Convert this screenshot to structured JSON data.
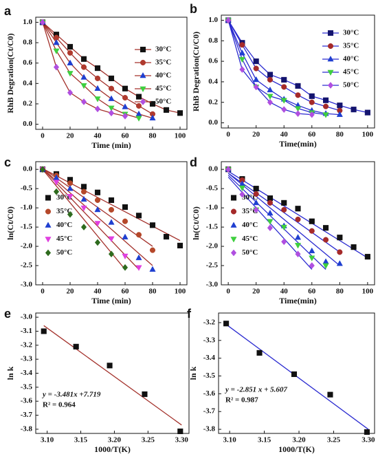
{
  "chart_data": [
    {
      "panel": "a",
      "type": "line",
      "xlabel": "Time (min)",
      "ylabel": "RhB Degration(Ct/C0)",
      "xlim": [
        -5,
        105
      ],
      "ylim": [
        -0.05,
        1.05
      ],
      "xticks": [
        0,
        20,
        40,
        60,
        80,
        100
      ],
      "yticks": [
        {
          "value": 0,
          "label": "0.0"
        },
        0.2,
        0.4,
        0.6,
        0.8,
        {
          "value": 1,
          "label": "1.0"
        }
      ],
      "legend": "upper right",
      "line_color": "#a3302a",
      "series": [
        {
          "name": "30°C",
          "color": "#111111",
          "marker": "square",
          "x": [
            0,
            10,
            20,
            30,
            40,
            50,
            60,
            70,
            80,
            90,
            100
          ],
          "values": [
            1.0,
            0.88,
            0.76,
            0.64,
            0.55,
            0.45,
            0.35,
            0.27,
            0.2,
            0.14,
            0.11
          ]
        },
        {
          "name": "35°C",
          "color": "#b03a2e",
          "marker": "circle",
          "x": [
            0,
            10,
            20,
            30,
            40,
            50,
            60,
            70,
            80
          ],
          "values": [
            1.0,
            0.85,
            0.7,
            0.56,
            0.45,
            0.35,
            0.26,
            0.18,
            0.1
          ]
        },
        {
          "name": "40°C",
          "color": "#1f3fd0",
          "marker": "triangle-up",
          "x": [
            0,
            10,
            20,
            30,
            40,
            50,
            60,
            70,
            80
          ],
          "values": [
            1.0,
            0.8,
            0.6,
            0.46,
            0.35,
            0.25,
            0.17,
            0.1,
            0.06
          ]
        },
        {
          "name": "45°C",
          "color": "#3fcf3f",
          "marker": "triangle-down",
          "x": [
            0,
            10,
            20,
            30,
            40,
            50,
            60,
            70
          ],
          "values": [
            1.0,
            0.72,
            0.5,
            0.38,
            0.25,
            0.16,
            0.1,
            0.06
          ]
        },
        {
          "name": "50°C",
          "color": "#b04fe0",
          "marker": "diamond",
          "x": [
            0,
            10,
            20,
            30,
            40,
            50,
            60
          ],
          "values": [
            1.0,
            0.56,
            0.31,
            0.22,
            0.15,
            0.11,
            0.08
          ]
        }
      ]
    },
    {
      "panel": "b",
      "type": "line",
      "xlabel": "Time(min)",
      "ylabel": "RhB Degration(Ct/C0)",
      "xlim": [
        -5,
        105
      ],
      "ylim": [
        -0.05,
        1.05
      ],
      "xticks": [
        0,
        20,
        40,
        60,
        80,
        100
      ],
      "yticks": [
        {
          "value": 0,
          "label": "0.0"
        },
        0.2,
        0.4,
        0.6,
        0.8,
        {
          "value": 1,
          "label": "1.0"
        }
      ],
      "legend": "upper right",
      "line_color": "#2a2ad0",
      "series": [
        {
          "name": "30°C",
          "color": "#14146e",
          "marker": "square",
          "x": [
            0,
            10,
            20,
            30,
            40,
            50,
            60,
            70,
            80,
            90,
            100
          ],
          "values": [
            1.0,
            0.78,
            0.6,
            0.47,
            0.42,
            0.36,
            0.26,
            0.22,
            0.17,
            0.13,
            0.1
          ]
        },
        {
          "name": "35°C",
          "color": "#a52a2a",
          "marker": "circle",
          "x": [
            0,
            10,
            20,
            30,
            40,
            50,
            60,
            70,
            80
          ],
          "values": [
            1.0,
            0.76,
            0.53,
            0.42,
            0.35,
            0.27,
            0.2,
            0.16,
            0.12
          ]
        },
        {
          "name": "40°C",
          "color": "#1f3fd0",
          "marker": "triangle-up",
          "x": [
            0,
            10,
            20,
            30,
            40,
            50,
            60,
            70,
            80
          ],
          "values": [
            1.0,
            0.68,
            0.42,
            0.32,
            0.23,
            0.17,
            0.12,
            0.09,
            0.08
          ]
        },
        {
          "name": "45°C",
          "color": "#3fcf3f",
          "marker": "triangle-down",
          "x": [
            0,
            10,
            20,
            30,
            40,
            50,
            60,
            70
          ],
          "values": [
            1.0,
            0.62,
            0.35,
            0.26,
            0.22,
            0.14,
            0.1,
            0.08
          ]
        },
        {
          "name": "50°C",
          "color": "#b04fe0",
          "marker": "diamond",
          "x": [
            0,
            10,
            20,
            30,
            40,
            50,
            60
          ],
          "values": [
            1.0,
            0.52,
            0.35,
            0.2,
            0.13,
            0.09,
            0.08
          ]
        }
      ]
    },
    {
      "panel": "c",
      "type": "scatter",
      "xlabel": "Time (min)",
      "ylabel": "ln(Ct/C0)",
      "xlim": [
        -5,
        105
      ],
      "ylim": [
        -3.0,
        0.2
      ],
      "xticks": [
        0,
        20,
        40,
        60,
        80,
        100
      ],
      "yticks": [
        {
          "value": 0,
          "label": "0.0"
        },
        -0.5,
        {
          "value": -1,
          "label": "-1.0"
        },
        -1.5,
        {
          "value": -2,
          "label": "-2.0"
        },
        -2.5,
        {
          "value": -3,
          "label": "-3.0"
        }
      ],
      "legend": "center left",
      "line_color": "#a3302a",
      "series": [
        {
          "name": "30°C",
          "color": "#111111",
          "marker": "square",
          "x": [
            0,
            10,
            20,
            30,
            40,
            50,
            60,
            70,
            80,
            90,
            100
          ],
          "values": [
            0,
            -0.12,
            -0.27,
            -0.45,
            -0.6,
            -0.8,
            -0.98,
            -1.2,
            -1.45,
            -1.75,
            -1.98
          ],
          "fit": {
            "x": [
              0,
              100
            ],
            "y": [
              0.02,
              -1.85
            ]
          }
        },
        {
          "name": "35°C",
          "color": "#b5482a",
          "marker": "circle",
          "x": [
            0,
            10,
            20,
            30,
            40,
            50,
            60,
            70,
            80
          ],
          "values": [
            0,
            -0.16,
            -0.36,
            -0.58,
            -0.8,
            -1.05,
            -1.35,
            -1.7,
            -2.1
          ],
          "fit": {
            "x": [
              0,
              80
            ],
            "y": [
              0.03,
              -2.0
            ]
          }
        },
        {
          "name": "40°C",
          "color": "#1f3fd0",
          "marker": "triangle-up",
          "x": [
            0,
            10,
            20,
            30,
            40,
            50,
            60,
            70,
            80
          ],
          "values": [
            0,
            -0.22,
            -0.5,
            -0.78,
            -1.05,
            -1.38,
            -1.76,
            -2.3,
            -2.6
          ],
          "fit": {
            "x": [
              0,
              80
            ],
            "y": [
              0.02,
              -2.5
            ]
          }
        },
        {
          "name": "45°C",
          "color": "#e040e0",
          "marker": "triangle-down",
          "x": [
            0,
            10,
            20,
            30,
            40,
            50,
            60,
            70
          ],
          "values": [
            0,
            -0.33,
            -0.7,
            -1.0,
            -1.4,
            -1.8,
            -2.25,
            -2.55
          ],
          "fit": {
            "x": [
              0,
              70
            ],
            "y": [
              0.02,
              -2.6
            ]
          }
        },
        {
          "name": "50°C",
          "color": "#2e6b1e",
          "marker": "diamond",
          "x": [
            0,
            10,
            20,
            30,
            40,
            50,
            60
          ],
          "values": [
            0,
            -0.58,
            -1.17,
            -1.5,
            -1.9,
            -2.2,
            -2.55
          ],
          "fit": {
            "x": [
              0,
              60
            ],
            "y": [
              0.0,
              -2.6
            ]
          }
        }
      ]
    },
    {
      "panel": "d",
      "type": "scatter",
      "xlabel": "Time(min)",
      "ylabel": "ln(Ct/C0)",
      "xlim": [
        -5,
        105
      ],
      "ylim": [
        -3.0,
        0.2
      ],
      "xticks": [
        0,
        20,
        40,
        60,
        80,
        100
      ],
      "yticks": [
        {
          "value": 0,
          "label": "0.0"
        },
        -0.5,
        {
          "value": -1,
          "label": "-1.0"
        },
        -1.5,
        {
          "value": -2,
          "label": "-2.0"
        },
        -2.5,
        {
          "value": -3,
          "label": "-3.0"
        }
      ],
      "legend": "center left",
      "line_color": "#2a2ad0",
      "series": [
        {
          "name": "30°C",
          "color": "#111111",
          "marker": "square",
          "x": [
            0,
            10,
            20,
            30,
            40,
            50,
            60,
            70,
            80,
            90,
            100
          ],
          "values": [
            0,
            -0.25,
            -0.5,
            -0.75,
            -0.87,
            -1.02,
            -1.35,
            -1.52,
            -1.77,
            -2.02,
            -2.27
          ],
          "fit": {
            "x": [
              0,
              100
            ],
            "y": [
              -0.05,
              -2.3
            ]
          }
        },
        {
          "name": "35°C",
          "color": "#a52a2a",
          "marker": "circle",
          "x": [
            0,
            10,
            20,
            30,
            40,
            50,
            60,
            70,
            80
          ],
          "values": [
            0,
            -0.28,
            -0.64,
            -0.87,
            -1.05,
            -1.3,
            -1.6,
            -1.83,
            -2.15
          ],
          "fit": {
            "x": [
              0,
              80
            ],
            "y": [
              -0.1,
              -2.15
            ]
          }
        },
        {
          "name": "40°C",
          "color": "#1f3fd0",
          "marker": "triangle-up",
          "x": [
            0,
            10,
            20,
            30,
            40,
            50,
            60,
            70,
            80
          ],
          "values": [
            0,
            -0.38,
            -0.87,
            -1.14,
            -1.47,
            -1.77,
            -2.12,
            -2.4,
            -2.45
          ],
          "fit": {
            "x": [
              0,
              80
            ],
            "y": [
              -0.1,
              -2.5
            ]
          }
        },
        {
          "name": "45°C",
          "color": "#3fcf3f",
          "marker": "triangle-down",
          "x": [
            0,
            10,
            20,
            30,
            40,
            50,
            60,
            70
          ],
          "values": [
            0,
            -0.48,
            -1.05,
            -1.35,
            -1.5,
            -1.97,
            -2.3,
            -2.5
          ],
          "fit": {
            "x": [
              0,
              70
            ],
            "y": [
              -0.15,
              -2.6
            ]
          }
        },
        {
          "name": "50°C",
          "color": "#b04fe0",
          "marker": "diamond",
          "x": [
            0,
            10,
            20,
            30,
            40,
            50,
            60
          ],
          "values": [
            0,
            -0.65,
            -1.05,
            -1.52,
            -1.88,
            -2.2,
            -2.5
          ],
          "fit": {
            "x": [
              0,
              60
            ],
            "y": [
              -0.2,
              -2.6
            ]
          }
        }
      ]
    },
    {
      "panel": "e",
      "type": "scatter",
      "xlabel": "1000/T(K)",
      "ylabel": "ln k",
      "xlim": [
        3.083,
        3.311
      ],
      "ylim": [
        -3.83,
        -2.97
      ],
      "xticks": [
        {
          "value": 3.1,
          "label": "3.10"
        },
        3.15,
        {
          "value": 3.2,
          "label": "3.20"
        },
        3.25,
        {
          "value": 3.3,
          "label": "3.30"
        }
      ],
      "yticks": [
        {
          "value": -3,
          "label": "-3.0"
        },
        -3.1,
        -3.2,
        -3.3,
        -3.4,
        -3.5,
        -3.6,
        -3.7,
        -3.8
      ],
      "line_color": "#a3302a",
      "annotations": [
        "y = -3.481x +7.719",
        "R² = 0.964"
      ],
      "series": [
        {
          "color": "#111111",
          "marker": "square",
          "x": [
            3.095,
            3.143,
            3.193,
            3.245,
            3.298
          ],
          "values": [
            -3.1,
            -3.21,
            -3.345,
            -3.55,
            -3.815
          ],
          "fit": {
            "x": [
              3.095,
              3.3
            ],
            "y": [
              -3.06,
              -3.77
            ]
          }
        }
      ]
    },
    {
      "panel": "f",
      "type": "scatter",
      "xlabel": "1000/T(K)",
      "ylabel": "ln k",
      "xlim": [
        3.084,
        3.309
      ],
      "ylim": [
        -3.823,
        -3.146
      ],
      "xticks": [
        {
          "value": 3.1,
          "label": "3.10"
        },
        3.15,
        {
          "value": 3.2,
          "label": "3.20"
        },
        3.25,
        {
          "value": 3.3,
          "label": "3.30"
        }
      ],
      "yticks": [
        -3.2,
        -3.3,
        -3.4,
        -3.5,
        -3.6,
        -3.7,
        -3.8
      ],
      "line_color": "#2a2ad0",
      "annotations": [
        "y = -2.851 x + 5.607",
        "R² = 0.987"
      ],
      "series": [
        {
          "color": "#111111",
          "marker": "square",
          "x": [
            3.095,
            3.143,
            3.193,
            3.245,
            3.298
          ],
          "values": [
            -3.205,
            -3.37,
            -3.49,
            -3.605,
            -3.815
          ],
          "fit": {
            "x": [
              3.095,
              3.3
            ],
            "y": [
              -3.21,
              -3.8
            ]
          }
        }
      ]
    }
  ]
}
